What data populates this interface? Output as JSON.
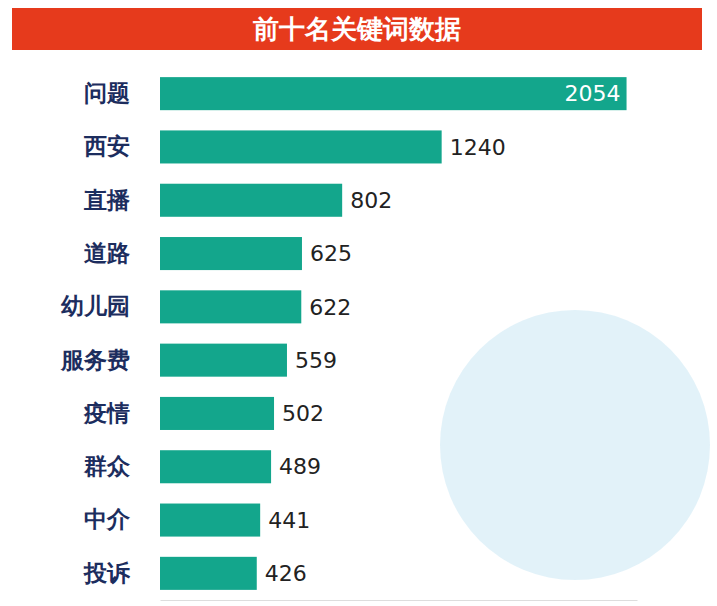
{
  "chart_data": {
    "type": "bar",
    "title": "前十名关键词数据",
    "orientation": "horizontal",
    "categories": [
      "问题",
      "西安",
      "直播",
      "道路",
      "幼儿园",
      "服务费",
      "疫情",
      "群众",
      "中介",
      "投诉"
    ],
    "values": [
      2054,
      1240,
      802,
      625,
      622,
      559,
      502,
      489,
      441,
      426
    ],
    "color": "#13a68c",
    "xlim": [
      0,
      2100
    ],
    "data_labels": true,
    "tick_labels": "y",
    "grid": false
  }
}
